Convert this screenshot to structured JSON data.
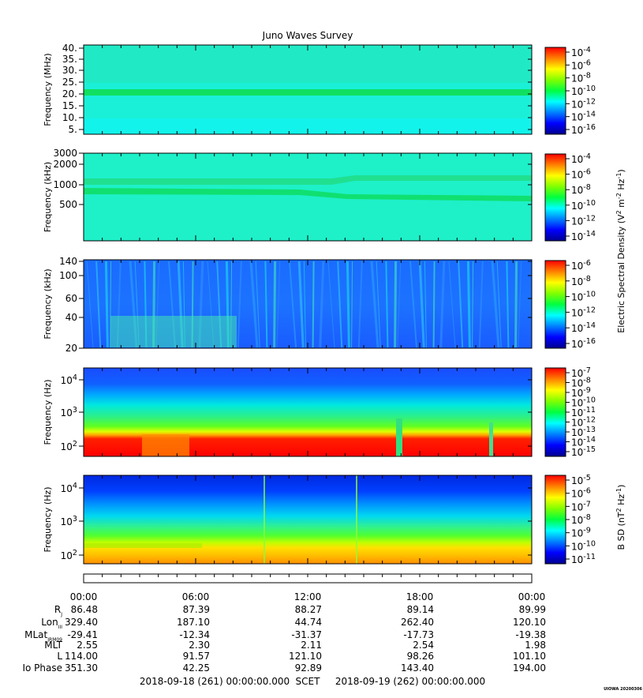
{
  "title": "Juno Waves Survey",
  "footer_stamp": "UIOWA 20200306",
  "panels": [
    {
      "id": "p1",
      "ylabel": "Frequency (MHz)",
      "yticks": [
        "40.",
        "35.",
        "30.",
        "25.",
        "20.",
        "15.",
        "10.",
        "5."
      ],
      "cb_ticks": [
        {
          "base": "10",
          "exp": "-4"
        },
        {
          "base": "10",
          "exp": "-6"
        },
        {
          "base": "10",
          "exp": "-8"
        },
        {
          "base": "10",
          "exp": "-10"
        },
        {
          "base": "10",
          "exp": "-12"
        },
        {
          "base": "10",
          "exp": "-14"
        },
        {
          "base": "10",
          "exp": "-16"
        }
      ]
    },
    {
      "id": "p2",
      "ylabel": "Frequency (kHz)",
      "yticks": [
        "3000",
        "2000",
        "1000",
        "500"
      ],
      "cb_ticks": [
        {
          "base": "10",
          "exp": "-4"
        },
        {
          "base": "10",
          "exp": "-6"
        },
        {
          "base": "10",
          "exp": "-8"
        },
        {
          "base": "10",
          "exp": "-10"
        },
        {
          "base": "10",
          "exp": "-12"
        },
        {
          "base": "10",
          "exp": "-14"
        }
      ]
    },
    {
      "id": "p3",
      "ylabel": "Frequency (kHz)",
      "yticks": [
        "140",
        "100",
        "60",
        "40",
        "20"
      ],
      "cb_ticks": [
        {
          "base": "10",
          "exp": "-6"
        },
        {
          "base": "10",
          "exp": "-8"
        },
        {
          "base": "10",
          "exp": "-10"
        },
        {
          "base": "10",
          "exp": "-12"
        },
        {
          "base": "10",
          "exp": "-14"
        },
        {
          "base": "10",
          "exp": "-16"
        }
      ]
    },
    {
      "id": "p4",
      "ylabel": "Frequency (Hz)",
      "yticks": [
        {
          "base": "10",
          "exp": "4"
        },
        {
          "base": "10",
          "exp": "3"
        },
        {
          "base": "10",
          "exp": "2"
        }
      ],
      "cb_ticks": [
        {
          "base": "10",
          "exp": "-7"
        },
        {
          "base": "10",
          "exp": "-8"
        },
        {
          "base": "10",
          "exp": "-9"
        },
        {
          "base": "10",
          "exp": "-10"
        },
        {
          "base": "10",
          "exp": "-11"
        },
        {
          "base": "10",
          "exp": "-12"
        },
        {
          "base": "10",
          "exp": "-13"
        },
        {
          "base": "10",
          "exp": "-14"
        },
        {
          "base": "10",
          "exp": "-15"
        }
      ]
    },
    {
      "id": "p5",
      "ylabel": "Frequency (Hz)",
      "yticks": [
        {
          "base": "10",
          "exp": "4"
        },
        {
          "base": "10",
          "exp": "3"
        },
        {
          "base": "10",
          "exp": "2"
        }
      ],
      "cb_ticks": [
        {
          "base": "10",
          "exp": "-5"
        },
        {
          "base": "10",
          "exp": "-6"
        },
        {
          "base": "10",
          "exp": "-7"
        },
        {
          "base": "10",
          "exp": "-8"
        },
        {
          "base": "10",
          "exp": "-9"
        },
        {
          "base": "10",
          "exp": "-10"
        },
        {
          "base": "10",
          "exp": "-11"
        }
      ]
    }
  ],
  "e_cb_label": "Electric Spectral Density (V",
  "e_cb_label_sup1": "2",
  "e_cb_label_mid": " m",
  "e_cb_label_sup2": "-2",
  "e_cb_label_mid2": " Hz",
  "e_cb_label_sup3": "-1",
  "e_cb_label_end": ")",
  "b_cb_label": "B SD (nT",
  "b_cb_label_sup1": "2",
  "b_cb_label_mid": " Hz",
  "b_cb_label_sup2": "-1",
  "b_cb_label_end": ")",
  "ephemeris": {
    "times": [
      "00:00",
      "06:00",
      "12:00",
      "18:00",
      "00:00"
    ],
    "rows": [
      {
        "label": "R",
        "sub": "J",
        "values": [
          "86.48",
          "87.39",
          "88.27",
          "89.14",
          "89.99"
        ]
      },
      {
        "label": "Lon",
        "sub": "III",
        "values": [
          "329.40",
          "187.10",
          "44.74",
          "262.40",
          "120.10"
        ]
      },
      {
        "label": "MLat",
        "sub": "JRM09",
        "values": [
          "-29.41",
          "-12.34",
          "-31.37",
          "-17.73",
          "-19.38"
        ]
      },
      {
        "label": "MLT",
        "sub": "",
        "values": [
          "2.55",
          "2.30",
          "2.11",
          "2.54",
          "1.98"
        ]
      },
      {
        "label": "L",
        "sub": "",
        "values": [
          "114.00",
          "91.57",
          "121.10",
          "98.26",
          "101.10"
        ]
      },
      {
        "label": "Io Phase",
        "sub": "",
        "values": [
          "351.30",
          "42.25",
          "92.89",
          "143.40",
          "194.00"
        ]
      }
    ]
  },
  "date_start": "2018-09-18 (261) 00:00:00.000",
  "scet_label": "SCET",
  "date_end": "2018-09-19 (262) 00:00:00.000",
  "colors": {
    "jet_top": "#ff0000",
    "jet_bottom": "#0000ff",
    "background": "#ffffff"
  }
}
